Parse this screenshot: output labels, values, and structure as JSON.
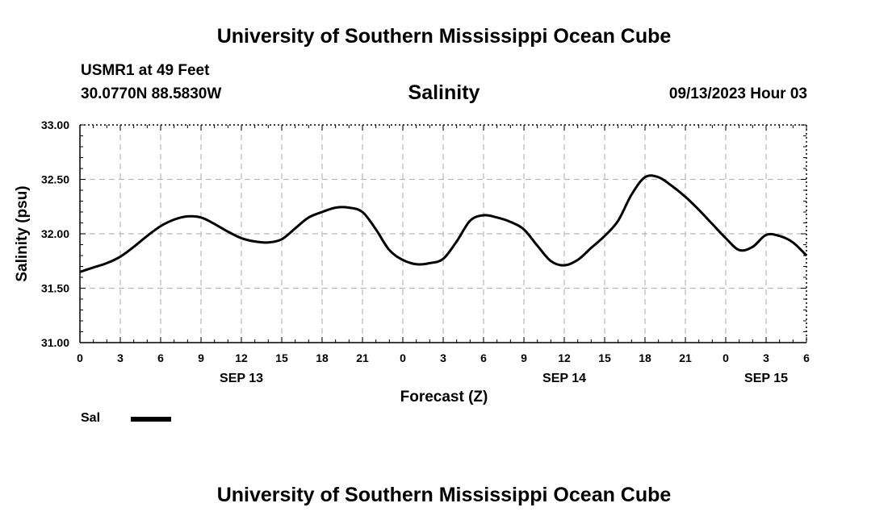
{
  "header": {
    "title": "University of Southern Mississippi Ocean Cube",
    "station": "USMR1 at 49 Feet",
    "coords": "30.0770N  88.5830W",
    "plot_title": "Salinity",
    "datetime": "09/13/2023 Hour 03"
  },
  "footer": {
    "title": "University of Southern Mississippi Ocean Cube"
  },
  "chart_data": {
    "type": "line",
    "xlabel": "Forecast (Z)",
    "ylabel": "Salinity (psu)",
    "ylim": [
      31.0,
      33.0
    ],
    "xlim": [
      0,
      54
    ],
    "y_ticks": [
      "31.00",
      "31.50",
      "32.00",
      "32.50",
      "33.00"
    ],
    "x_tick_labels": [
      "0",
      "3",
      "6",
      "9",
      "12",
      "15",
      "18",
      "21",
      "0",
      "3",
      "6",
      "9",
      "12",
      "15",
      "18",
      "21",
      "0",
      "3",
      "6"
    ],
    "date_labels": [
      {
        "label": "SEP 13",
        "hour": 12
      },
      {
        "label": "SEP 14",
        "hour": 36
      },
      {
        "label": "SEP 15",
        "hour": 51
      }
    ],
    "grid": true,
    "legend": "bottom-left",
    "series": [
      {
        "name": "Sal",
        "color": "#000000",
        "x": [
          0,
          1,
          2,
          3,
          4,
          5,
          6,
          7,
          8,
          9,
          10,
          11,
          12,
          13,
          14,
          15,
          16,
          17,
          18,
          19,
          20,
          21,
          22,
          23,
          24,
          25,
          26,
          27,
          28,
          29,
          30,
          31,
          32,
          33,
          34,
          35,
          36,
          37,
          38,
          39,
          40,
          41,
          42,
          43,
          44,
          45,
          46,
          47,
          48,
          49,
          50,
          51,
          52,
          53,
          54
        ],
        "values": [
          31.65,
          31.69,
          31.73,
          31.79,
          31.88,
          31.98,
          32.07,
          32.13,
          32.16,
          32.15,
          32.09,
          32.02,
          31.96,
          31.93,
          31.92,
          31.95,
          32.05,
          32.15,
          32.2,
          32.24,
          32.24,
          32.2,
          32.04,
          31.85,
          31.76,
          31.72,
          31.73,
          31.77,
          31.93,
          32.12,
          32.17,
          32.15,
          32.11,
          32.04,
          31.89,
          31.75,
          31.71,
          31.76,
          31.87,
          31.98,
          32.12,
          32.36,
          32.52,
          32.52,
          32.44,
          32.34,
          32.22,
          32.09,
          31.96,
          31.85,
          31.88,
          31.99,
          31.98,
          31.92,
          31.8
        ]
      }
    ]
  }
}
